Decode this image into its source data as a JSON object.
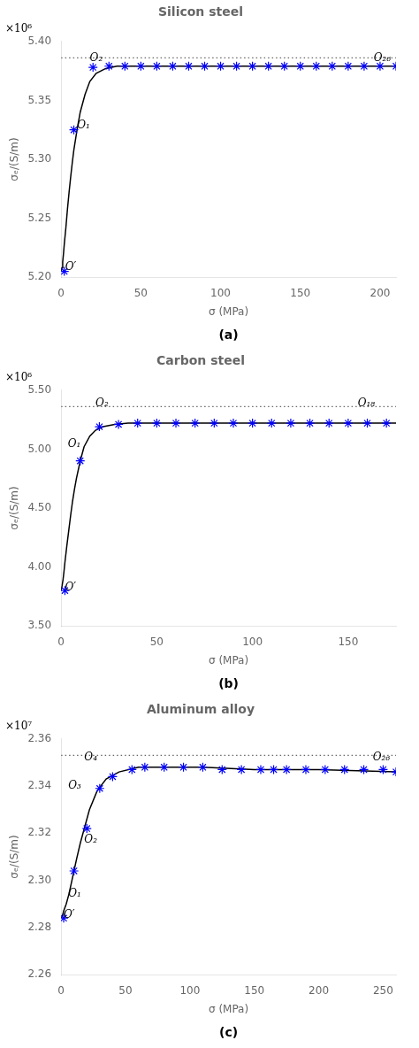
{
  "chart_data": [
    {
      "type": "line",
      "title": "Silicon steel",
      "panel_label": "(a)",
      "xlabel": "σ (MPa)",
      "ylabel": "σₑ/(S/m)",
      "scale_label": "×10⁶",
      "xlim": [
        0,
        210
      ],
      "xticks": [
        0,
        50,
        100,
        150,
        200
      ],
      "ylim": [
        5.2,
        5.4
      ],
      "yticks": [
        {
          "value": 5.2,
          "label": "5.20"
        },
        {
          "value": 5.25,
          "label": "5.25"
        },
        {
          "value": 5.3,
          "label": "5.30"
        },
        {
          "value": 5.35,
          "label": "5.35"
        },
        {
          "value": 5.4,
          "label": "5.40"
        }
      ],
      "grid": false,
      "series": [
        {
          "type": "line",
          "color": "#000000",
          "line_style": "solid",
          "x": [
            0,
            0.5,
            1,
            1.5,
            2,
            3,
            4,
            5,
            6,
            7,
            8,
            10,
            12,
            15,
            18,
            22,
            28,
            35,
            45,
            60,
            80,
            120,
            170,
            210
          ],
          "values": [
            5.205,
            5.208,
            5.213,
            5.22,
            5.228,
            5.242,
            5.258,
            5.272,
            5.285,
            5.297,
            5.308,
            5.325,
            5.34,
            5.355,
            5.366,
            5.373,
            5.377,
            5.379,
            5.379,
            5.379,
            5.379,
            5.379,
            5.379,
            5.379
          ]
        },
        {
          "type": "scatter",
          "color": "#0000ff",
          "marker": "star",
          "x": [
            2,
            8,
            20,
            30,
            40,
            50,
            60,
            70,
            80,
            90,
            100,
            110,
            120,
            130,
            140,
            150,
            160,
            170,
            180,
            190,
            200,
            210
          ],
          "values": [
            5.205,
            5.325,
            5.378,
            5.379,
            5.379,
            5.379,
            5.379,
            5.379,
            5.379,
            5.379,
            5.379,
            5.379,
            5.379,
            5.379,
            5.379,
            5.379,
            5.379,
            5.379,
            5.379,
            5.379,
            5.379,
            5.379
          ]
        }
      ],
      "hlines": [
        {
          "y": 5.386,
          "color": "#666666",
          "line_style": "dotted"
        }
      ],
      "annotations": [
        {
          "text": "O′",
          "x": 2.5,
          "y": 5.204
        },
        {
          "text": "O₁",
          "x": 10,
          "y": 5.324
        },
        {
          "text": "O₂",
          "x": 18,
          "y": 5.381
        },
        {
          "text": "O₂₆",
          "x": 196,
          "y": 5.381
        }
      ]
    },
    {
      "type": "line",
      "title": "Carbon steel",
      "panel_label": "(b)",
      "xlabel": "σ (MPa)",
      "ylabel": "σₑ/(S/m)",
      "scale_label": "×10⁶",
      "xlim": [
        0,
        175
      ],
      "xticks": [
        0,
        50,
        100,
        150
      ],
      "ylim": [
        3.5,
        5.5
      ],
      "yticks": [
        {
          "value": 3.5,
          "label": "3.50"
        },
        {
          "value": 4.0,
          "label": "4.00"
        },
        {
          "value": 4.5,
          "label": "4.50"
        },
        {
          "value": 5.0,
          "label": "5.00"
        },
        {
          "value": 5.5,
          "label": "5.50"
        }
      ],
      "grid": false,
      "series": [
        {
          "type": "line",
          "color": "#000000",
          "line_style": "solid",
          "x": [
            0,
            0.5,
            1,
            1.5,
            2,
            3,
            4,
            5,
            6,
            7,
            8,
            10,
            12,
            15,
            18,
            22,
            28,
            35,
            45,
            60,
            80,
            120,
            160,
            175
          ],
          "values": [
            3.8,
            3.84,
            3.89,
            3.96,
            4.04,
            4.18,
            4.31,
            4.44,
            4.56,
            4.66,
            4.75,
            4.9,
            5.02,
            5.11,
            5.16,
            5.19,
            5.21,
            5.22,
            5.22,
            5.22,
            5.22,
            5.22,
            5.22,
            5.22
          ]
        },
        {
          "type": "scatter",
          "color": "#0000ff",
          "marker": "star",
          "x": [
            2,
            10,
            20,
            30,
            40,
            50,
            60,
            70,
            80,
            90,
            100,
            110,
            120,
            130,
            140,
            150,
            160,
            170
          ],
          "values": [
            3.8,
            4.9,
            5.19,
            5.21,
            5.22,
            5.22,
            5.22,
            5.22,
            5.22,
            5.22,
            5.22,
            5.22,
            5.22,
            5.22,
            5.22,
            5.22,
            5.22,
            5.22
          ]
        }
      ],
      "hlines": [
        {
          "y": 5.36,
          "color": "#666666",
          "line_style": "dotted"
        }
      ],
      "annotations": [
        {
          "text": "O′",
          "x": 2.0,
          "y": 3.78
        },
        {
          "text": "O₁",
          "x": 3.5,
          "y": 5.0
        },
        {
          "text": "O₂",
          "x": 18,
          "y": 5.34
        },
        {
          "text": "O₁₈",
          "x": 155,
          "y": 5.34
        }
      ]
    },
    {
      "type": "line",
      "title": "Aluminum alloy",
      "panel_label": "(c)",
      "xlabel": "σ (MPa)",
      "ylabel": "σₑ/(S/m)",
      "scale_label": "×10⁷",
      "xlim": [
        0,
        260
      ],
      "xticks": [
        0,
        50,
        100,
        150,
        200,
        250
      ],
      "ylim": [
        2.26,
        2.36
      ],
      "yticks": [
        2.26,
        2.28,
        {
          "value": 2.3,
          "label": "2.30"
        },
        2.32,
        2.34,
        2.36
      ],
      "grid": false,
      "series": [
        {
          "type": "line",
          "color": "#000000",
          "line_style": "solid",
          "x": [
            0,
            1,
            2,
            4,
            6,
            8,
            10,
            12,
            15,
            18,
            22,
            28,
            35,
            45,
            60,
            80,
            110,
            150,
            200,
            260
          ],
          "values": [
            2.284,
            2.285,
            2.287,
            2.29,
            2.294,
            2.299,
            2.304,
            2.309,
            2.316,
            2.322,
            2.33,
            2.338,
            2.343,
            2.346,
            2.348,
            2.348,
            2.348,
            2.347,
            2.347,
            2.346
          ]
        },
        {
          "type": "scatter",
          "color": "#0000ff",
          "marker": "star",
          "x": [
            2,
            10,
            20,
            30,
            40,
            55,
            65,
            80,
            95,
            110,
            125,
            140,
            155,
            165,
            175,
            190,
            205,
            220,
            235,
            250,
            260
          ],
          "values": [
            2.284,
            2.304,
            2.322,
            2.339,
            2.344,
            2.347,
            2.348,
            2.348,
            2.348,
            2.348,
            2.347,
            2.347,
            2.347,
            2.347,
            2.347,
            2.347,
            2.347,
            2.347,
            2.347,
            2.347,
            2.346
          ]
        }
      ],
      "hlines": [
        {
          "y": 2.353,
          "color": "#666666",
          "line_style": "dotted"
        }
      ],
      "annotations": [
        {
          "text": "O′",
          "x": 2.0,
          "y": 2.283
        },
        {
          "text": "O₁",
          "x": 5.5,
          "y": 2.292
        },
        {
          "text": "O₂",
          "x": 18,
          "y": 2.315
        },
        {
          "text": "O₃",
          "x": 5.5,
          "y": 2.338
        },
        {
          "text": "O₄",
          "x": 18,
          "y": 2.35
        },
        {
          "text": "O₂₆",
          "x": 242,
          "y": 2.35
        }
      ]
    }
  ]
}
